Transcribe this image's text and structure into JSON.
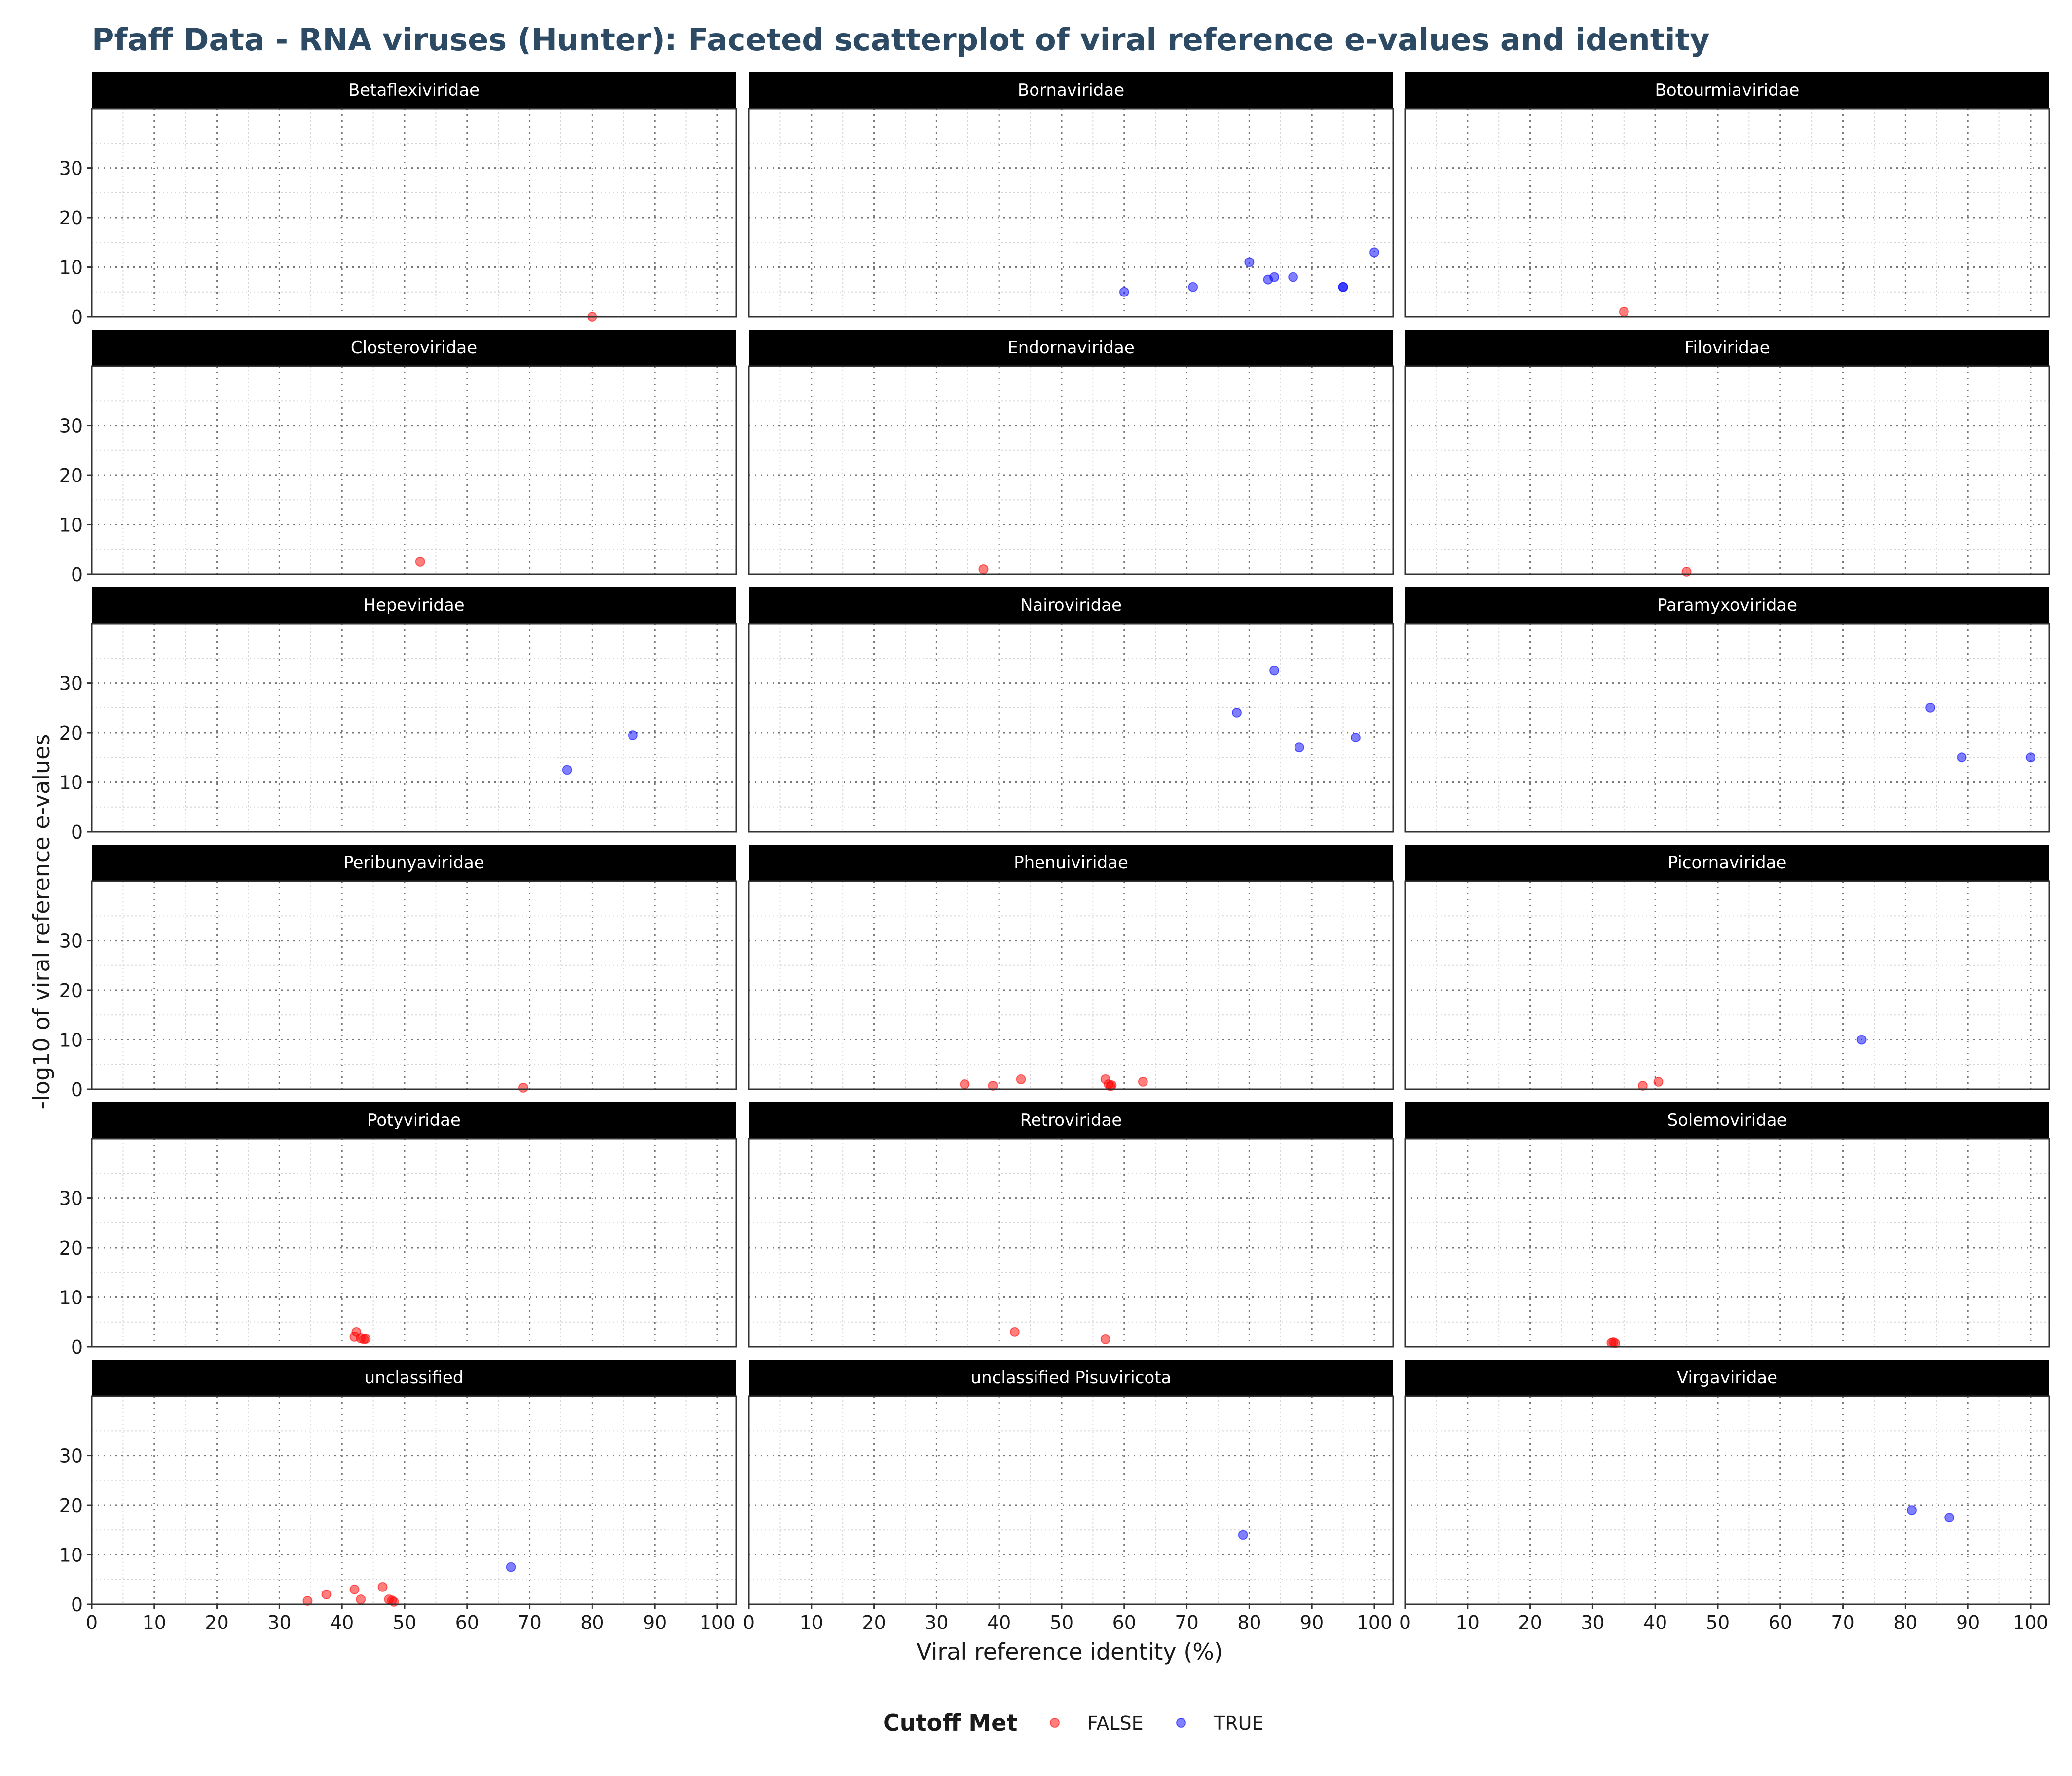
{
  "chart_data": {
    "type": "scatter",
    "title": "Pfaff Data - RNA viruses (Hunter): Faceted scatterplot of viral reference e-values and identity",
    "xlabel": "Viral reference identity (%)",
    "ylabel": "-log10 of viral reference e-values",
    "xlim": [
      0,
      103
    ],
    "ylim": [
      0,
      42
    ],
    "x_ticks": [
      0,
      10,
      20,
      30,
      40,
      50,
      60,
      70,
      80,
      90,
      100
    ],
    "y_ticks": [
      0,
      10,
      20,
      30
    ],
    "grid": true,
    "legend": {
      "title": "Cutoff Met",
      "position": "bottom",
      "entries": [
        {
          "label": "FALSE",
          "color": "#ff0000"
        },
        {
          "label": "TRUE",
          "color": "#0000ff"
        }
      ]
    },
    "facets": [
      {
        "name": "Betaflexiviridae",
        "points": [
          {
            "x": 80,
            "y": 0,
            "cutoff": false
          }
        ]
      },
      {
        "name": "Bornaviridae",
        "points": [
          {
            "x": 60,
            "y": 5,
            "cutoff": true
          },
          {
            "x": 71,
            "y": 6,
            "cutoff": true
          },
          {
            "x": 80,
            "y": 11,
            "cutoff": true
          },
          {
            "x": 83,
            "y": 7.5,
            "cutoff": true
          },
          {
            "x": 84,
            "y": 8,
            "cutoff": true
          },
          {
            "x": 87,
            "y": 8,
            "cutoff": true
          },
          {
            "x": 95,
            "y": 6,
            "cutoff": true
          },
          {
            "x": 95,
            "y": 6,
            "cutoff": true
          },
          {
            "x": 100,
            "y": 13,
            "cutoff": true
          }
        ]
      },
      {
        "name": "Botourmiaviridae",
        "points": [
          {
            "x": 35,
            "y": 1,
            "cutoff": false
          }
        ]
      },
      {
        "name": "Closteroviridae",
        "points": [
          {
            "x": 52.5,
            "y": 2.5,
            "cutoff": false
          }
        ]
      },
      {
        "name": "Endornaviridae",
        "points": [
          {
            "x": 37.5,
            "y": 1,
            "cutoff": false
          }
        ]
      },
      {
        "name": "Filoviridae",
        "points": [
          {
            "x": 45,
            "y": 0.5,
            "cutoff": false
          }
        ]
      },
      {
        "name": "Hepeviridae",
        "points": [
          {
            "x": 76,
            "y": 12.5,
            "cutoff": true
          },
          {
            "x": 86.5,
            "y": 19.5,
            "cutoff": true
          }
        ]
      },
      {
        "name": "Nairoviridae",
        "points": [
          {
            "x": 78,
            "y": 24,
            "cutoff": true
          },
          {
            "x": 84,
            "y": 32.5,
            "cutoff": true
          },
          {
            "x": 88,
            "y": 17,
            "cutoff": true
          },
          {
            "x": 97,
            "y": 19,
            "cutoff": true
          }
        ]
      },
      {
        "name": "Paramyxoviridae",
        "points": [
          {
            "x": 84,
            "y": 25,
            "cutoff": true
          },
          {
            "x": 89,
            "y": 15,
            "cutoff": true
          },
          {
            "x": 100,
            "y": 15,
            "cutoff": true
          }
        ]
      },
      {
        "name": "Peribunyaviridae",
        "points": [
          {
            "x": 69,
            "y": 0.3,
            "cutoff": false
          }
        ]
      },
      {
        "name": "Phenuiviridae",
        "points": [
          {
            "x": 34.5,
            "y": 1,
            "cutoff": false
          },
          {
            "x": 39,
            "y": 0.7,
            "cutoff": false
          },
          {
            "x": 43.5,
            "y": 2,
            "cutoff": false
          },
          {
            "x": 57,
            "y": 2,
            "cutoff": false
          },
          {
            "x": 57.5,
            "y": 1,
            "cutoff": false
          },
          {
            "x": 58,
            "y": 0.8,
            "cutoff": false
          },
          {
            "x": 57.8,
            "y": 0.6,
            "cutoff": false
          },
          {
            "x": 63,
            "y": 1.5,
            "cutoff": false
          }
        ]
      },
      {
        "name": "Picornaviridae",
        "points": [
          {
            "x": 38,
            "y": 0.7,
            "cutoff": false
          },
          {
            "x": 40.5,
            "y": 1.5,
            "cutoff": false
          },
          {
            "x": 73,
            "y": 10,
            "cutoff": true
          }
        ]
      },
      {
        "name": "Potyviridae",
        "points": [
          {
            "x": 42,
            "y": 2,
            "cutoff": false
          },
          {
            "x": 42.3,
            "y": 3,
            "cutoff": false
          },
          {
            "x": 43,
            "y": 1.7,
            "cutoff": false
          },
          {
            "x": 43.5,
            "y": 1.5,
            "cutoff": false
          },
          {
            "x": 43.8,
            "y": 1.6,
            "cutoff": false
          }
        ]
      },
      {
        "name": "Retroviridae",
        "points": [
          {
            "x": 42.5,
            "y": 3,
            "cutoff": false
          },
          {
            "x": 57,
            "y": 1.5,
            "cutoff": false
          }
        ]
      },
      {
        "name": "Solemoviridae",
        "points": [
          {
            "x": 33,
            "y": 0.8,
            "cutoff": false
          },
          {
            "x": 33.3,
            "y": 0.9,
            "cutoff": false
          },
          {
            "x": 33.6,
            "y": 0.7,
            "cutoff": false
          }
        ]
      },
      {
        "name": "unclassified",
        "points": [
          {
            "x": 34.5,
            "y": 0.7,
            "cutoff": false
          },
          {
            "x": 37.5,
            "y": 2,
            "cutoff": false
          },
          {
            "x": 42,
            "y": 3,
            "cutoff": false
          },
          {
            "x": 43,
            "y": 1,
            "cutoff": false
          },
          {
            "x": 46.5,
            "y": 3.5,
            "cutoff": false
          },
          {
            "x": 47.5,
            "y": 1,
            "cutoff": false
          },
          {
            "x": 48,
            "y": 0.8,
            "cutoff": false
          },
          {
            "x": 48.3,
            "y": 0.5,
            "cutoff": false
          },
          {
            "x": 67,
            "y": 7.5,
            "cutoff": true
          }
        ]
      },
      {
        "name": "unclassified Pisuviricota",
        "points": [
          {
            "x": 79,
            "y": 14,
            "cutoff": true
          }
        ]
      },
      {
        "name": "Virgaviridae",
        "points": [
          {
            "x": 81,
            "y": 19,
            "cutoff": true
          },
          {
            "x": 87,
            "y": 17.5,
            "cutoff": true
          }
        ]
      }
    ]
  }
}
